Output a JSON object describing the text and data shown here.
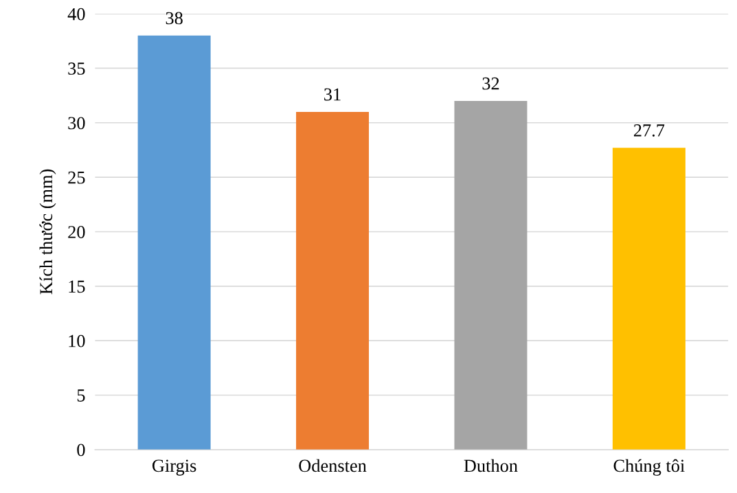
{
  "chart_data": {
    "type": "bar",
    "ylabel": "Kích thước (mm)",
    "categories": [
      "Girgis",
      "Odensten",
      "Duthon",
      "Chúng tôi"
    ],
    "values": [
      38,
      31,
      32,
      27.7
    ],
    "colors": [
      "#5b9bd5",
      "#ed7d31",
      "#a5a5a5",
      "#ffc000"
    ],
    "ylim": [
      0,
      40
    ],
    "yticks": [
      0,
      5,
      10,
      15,
      20,
      25,
      30,
      35,
      40
    ],
    "grid": "y",
    "data_labels": true,
    "legend": false
  }
}
